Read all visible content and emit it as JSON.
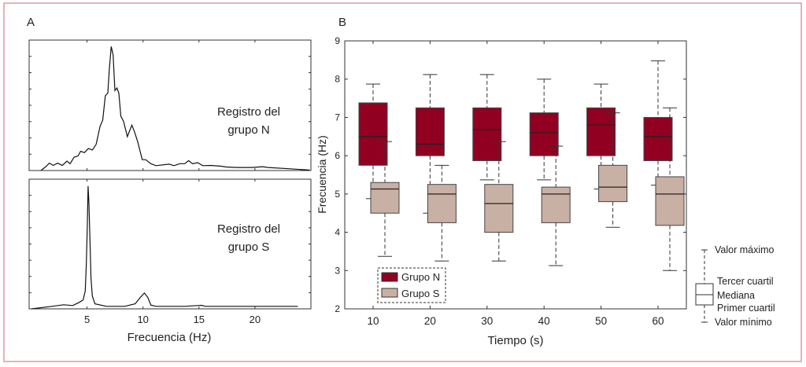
{
  "panel_a": {
    "letter": "A",
    "xlabel": "Frecuencia (Hz)",
    "annotation_n": [
      "Registro del",
      "grupo N"
    ],
    "annotation_s": [
      "Registro del",
      "grupo S"
    ]
  },
  "panel_b": {
    "letter": "B"
  },
  "chart_data": [
    {
      "type": "line",
      "title": "Registro del grupo N",
      "xlabel": "Frecuencia (Hz)",
      "ylabel": "",
      "xlim": [
        0,
        25
      ],
      "ylim": [
        0,
        1
      ],
      "xticks": [
        5,
        10,
        15,
        20
      ],
      "color": "#111111",
      "points": [
        [
          0.88,
          0
        ],
        [
          1.28,
          0.028
        ],
        [
          1.63,
          0.058
        ],
        [
          1.98,
          0.04
        ],
        [
          2.37,
          0.058
        ],
        [
          2.79,
          0.04
        ],
        [
          3.21,
          0.074
        ],
        [
          3.49,
          0.054
        ],
        [
          3.84,
          0.105
        ],
        [
          4.19,
          0.115
        ],
        [
          4.42,
          0.151
        ],
        [
          4.77,
          0.141
        ],
        [
          5.12,
          0.173
        ],
        [
          5.47,
          0.161
        ],
        [
          5.81,
          0.205
        ],
        [
          6.16,
          0.346
        ],
        [
          6.4,
          0.396
        ],
        [
          6.63,
          0.587
        ],
        [
          6.86,
          0.608
        ],
        [
          6.98,
          0.789
        ],
        [
          7.16,
          0.974
        ],
        [
          7.33,
          0.909
        ],
        [
          7.49,
          0.628
        ],
        [
          7.67,
          0.648
        ],
        [
          7.84,
          0.608
        ],
        [
          8.02,
          0.427
        ],
        [
          8.26,
          0.386
        ],
        [
          8.6,
          0.266
        ],
        [
          9.0,
          0.356
        ],
        [
          9.23,
          0.306
        ],
        [
          9.53,
          0.225
        ],
        [
          9.93,
          0.085
        ],
        [
          10.23,
          0.085
        ],
        [
          10.7,
          0.054
        ],
        [
          11.16,
          0.038
        ],
        [
          12.33,
          0.05
        ],
        [
          12.79,
          0.038
        ],
        [
          13.26,
          0.054
        ],
        [
          13.72,
          0.054
        ],
        [
          14.07,
          0.078
        ],
        [
          14.42,
          0.054
        ],
        [
          14.88,
          0.062
        ],
        [
          15.35,
          0.038
        ],
        [
          16.05,
          0.04
        ],
        [
          16.98,
          0.034
        ],
        [
          17.44,
          0.028
        ],
        [
          18.37,
          0.024
        ],
        [
          19.77,
          0.024
        ],
        [
          20.7,
          0.03
        ],
        [
          21.16,
          0.024
        ],
        [
          23.02,
          0.014
        ],
        [
          24.88,
          0.004
        ]
      ]
    },
    {
      "type": "line",
      "title": "Registro del grupo S",
      "xlabel": "Frecuencia (Hz)",
      "ylabel": "",
      "xlim": [
        0,
        25
      ],
      "ylim": [
        0,
        1
      ],
      "xticks": [
        5,
        10,
        15,
        20
      ],
      "color": "#111111",
      "points": [
        [
          0.05,
          0
        ],
        [
          1.86,
          0.02
        ],
        [
          2.91,
          0.032
        ],
        [
          3.72,
          0.026
        ],
        [
          4.3,
          0.051
        ],
        [
          4.65,
          0.071
        ],
        [
          4.84,
          0.141
        ],
        [
          4.93,
          0.343
        ],
        [
          5.02,
          0.646
        ],
        [
          5.09,
          0.97
        ],
        [
          5.16,
          0.848
        ],
        [
          5.26,
          0.545
        ],
        [
          5.35,
          0.242
        ],
        [
          5.47,
          0.101
        ],
        [
          5.7,
          0.04
        ],
        [
          6.74,
          0.02
        ],
        [
          8.37,
          0.02
        ],
        [
          9.3,
          0.04
        ],
        [
          9.77,
          0.091
        ],
        [
          10.12,
          0.125
        ],
        [
          10.42,
          0.091
        ],
        [
          10.7,
          0.03
        ],
        [
          11.16,
          0.02
        ],
        [
          13.72,
          0.02
        ],
        [
          15.23,
          0.028
        ],
        [
          15.58,
          0.02
        ],
        [
          23.84,
          0.02
        ]
      ]
    },
    {
      "type": "box",
      "xlabel": "Tiempo (s)",
      "ylabel": "Frecuencia (Hz)",
      "ylim": [
        2,
        9
      ],
      "yticks": [
        2,
        3,
        4,
        5,
        6,
        7,
        8,
        9
      ],
      "categories": [
        "10",
        "20",
        "30",
        "40",
        "50",
        "60"
      ],
      "legend_position": "bottom-left",
      "series": [
        {
          "name": "Grupo N",
          "color": "#920021",
          "boxes": [
            {
              "min": 4.88,
              "q1": 5.75,
              "median": 6.5,
              "q3": 7.38,
              "max": 7.87
            },
            {
              "min": 4.5,
              "q1": 6.0,
              "median": 6.3,
              "q3": 7.25,
              "max": 8.12
            },
            {
              "min": 5.37,
              "q1": 5.87,
              "median": 6.68,
              "q3": 7.25,
              "max": 8.12
            },
            {
              "min": 5.37,
              "q1": 6.0,
              "median": 6.6,
              "q3": 7.12,
              "max": 8.0
            },
            {
              "min": 5.13,
              "q1": 6.0,
              "median": 6.8,
              "q3": 7.25,
              "max": 7.87
            },
            {
              "min": 5.23,
              "q1": 5.87,
              "median": 6.5,
              "q3": 7.0,
              "max": 8.48
            }
          ]
        },
        {
          "name": "Grupo S",
          "color": "#c9b0a4",
          "boxes": [
            {
              "min": 3.37,
              "q1": 4.5,
              "median": 5.13,
              "q3": 5.3,
              "max": 6.37
            },
            {
              "min": 3.25,
              "q1": 4.25,
              "median": 5.0,
              "q3": 5.25,
              "max": 5.75
            },
            {
              "min": 3.25,
              "q1": 4.0,
              "median": 4.75,
              "q3": 5.25,
              "max": 6.37
            },
            {
              "min": 3.13,
              "q1": 4.25,
              "median": 5.0,
              "q3": 5.18,
              "max": 6.25
            },
            {
              "min": 4.13,
              "q1": 4.8,
              "median": 5.18,
              "q3": 5.75,
              "max": 7.12
            },
            {
              "min": 3.0,
              "q1": 4.18,
              "median": 5.0,
              "q3": 5.45,
              "max": 7.25
            }
          ]
        }
      ]
    }
  ],
  "box_key": {
    "max": "Valor máximo",
    "q3": "Tercer cuartil",
    "median": "Mediana",
    "q1": "Primer cuartil",
    "min": "Valor mínimo"
  }
}
